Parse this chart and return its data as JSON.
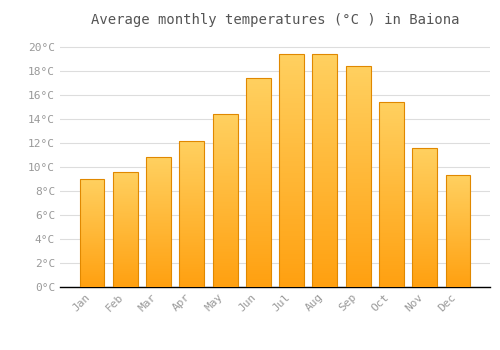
{
  "title": "Average monthly temperatures (°C ) in Baiona",
  "months": [
    "Jan",
    "Feb",
    "Mar",
    "Apr",
    "May",
    "Jun",
    "Jul",
    "Aug",
    "Sep",
    "Oct",
    "Nov",
    "Dec"
  ],
  "temperatures": [
    9.0,
    9.6,
    10.8,
    12.2,
    14.4,
    17.4,
    19.4,
    19.4,
    18.4,
    15.4,
    11.6,
    9.3
  ],
  "bar_color_top": "#FFD060",
  "bar_color_bottom": "#FFA010",
  "bar_edge_color": "#E08800",
  "background_color": "#FFFFFF",
  "plot_bg_color": "#FFFFFF",
  "grid_color": "#DDDDDD",
  "tick_label_color": "#999999",
  "title_color": "#555555",
  "ylim": [
    0,
    21
  ],
  "ytick_step": 2,
  "title_fontsize": 10,
  "tick_fontsize": 8,
  "bar_width": 0.75
}
